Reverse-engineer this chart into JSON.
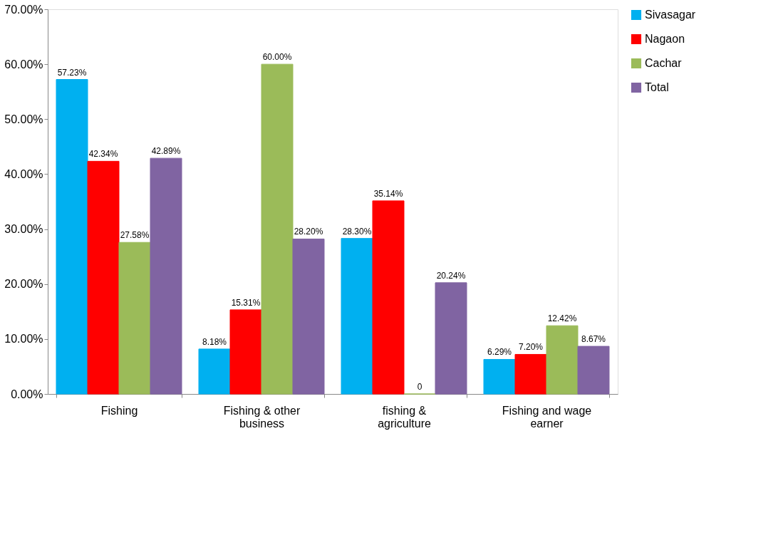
{
  "chart_data": {
    "type": "bar",
    "categories": [
      "Fishing",
      "Fishing & other business",
      "fishing & agriculture",
      "Fishing and wage earner"
    ],
    "series": [
      {
        "name": "Sivasagar",
        "color": "#00b0f0",
        "values": [
          57.23,
          8.18,
          28.3,
          6.29
        ],
        "value_labels": [
          "57.23%",
          "8.18%",
          "28.30%",
          "6.29%"
        ]
      },
      {
        "name": "Nagaon",
        "color": "#ff0000",
        "values": [
          42.34,
          15.31,
          35.14,
          7.2
        ],
        "value_labels": [
          "42.34%",
          "15.31%",
          "35.14%",
          "7.20%"
        ]
      },
      {
        "name": "Cachar",
        "color": "#9bbb59",
        "values": [
          27.58,
          60.0,
          0,
          12.42
        ],
        "value_labels": [
          "27.58%",
          "60.00%",
          "0",
          "12.42%"
        ]
      },
      {
        "name": "Total",
        "color": "#8064a2",
        "values": [
          42.89,
          28.2,
          20.24,
          8.67
        ],
        "value_labels": [
          "42.89%",
          "28.20%",
          "20.24%",
          "8.67%"
        ]
      }
    ],
    "ylim": [
      0,
      70
    ],
    "yticks": [
      {
        "value": 0,
        "label": "0.00%"
      },
      {
        "value": 10,
        "label": "10.00%"
      },
      {
        "value": 20,
        "label": "20.00%"
      },
      {
        "value": 30,
        "label": "30.00%"
      },
      {
        "value": 40,
        "label": "40.00%"
      },
      {
        "value": 50,
        "label": "50.00%"
      },
      {
        "value": 60,
        "label": "60.00%"
      },
      {
        "value": 70,
        "label": "70.00%"
      }
    ],
    "grid": false,
    "legend": "right"
  }
}
